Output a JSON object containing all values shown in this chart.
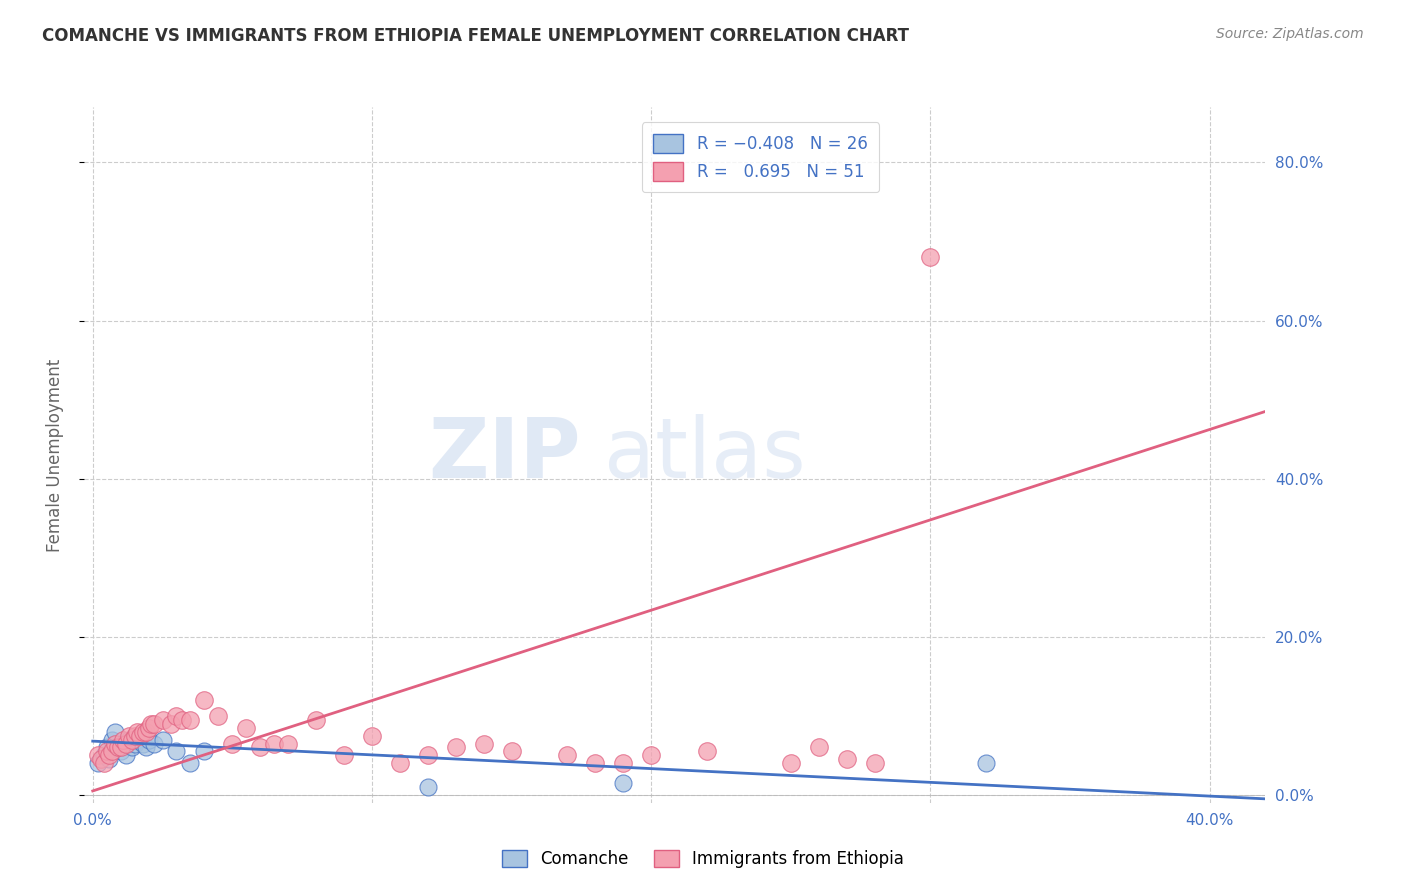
{
  "title": "COMANCHE VS IMMIGRANTS FROM ETHIOPIA FEMALE UNEMPLOYMENT CORRELATION CHART",
  "source": "Source: ZipAtlas.com",
  "ylabel": "Female Unemployment",
  "xlim": [
    -0.003,
    0.42
  ],
  "ylim": [
    -0.01,
    0.87
  ],
  "ytick_labels": [
    "0.0%",
    "20.0%",
    "40.0%",
    "60.0%",
    "80.0%"
  ],
  "ytick_vals": [
    0.0,
    0.2,
    0.4,
    0.6,
    0.8
  ],
  "xtick_labels": [
    "0.0%",
    "",
    "",
    "",
    "40.0%"
  ],
  "xtick_vals": [
    0.0,
    0.1,
    0.2,
    0.3,
    0.4
  ],
  "grid_color": "#cccccc",
  "background_color": "#ffffff",
  "comanche_color": "#a8c4e0",
  "ethiopia_color": "#f4a0b0",
  "line1_color": "#4472c4",
  "line2_color": "#e06080",
  "tick_label_color": "#4472c4",
  "title_color": "#333333",
  "source_color": "#888888",
  "ylabel_color": "#666666",
  "comanche_points_x": [
    0.002,
    0.004,
    0.005,
    0.006,
    0.007,
    0.008,
    0.009,
    0.01,
    0.011,
    0.012,
    0.013,
    0.014,
    0.015,
    0.016,
    0.017,
    0.018,
    0.019,
    0.02,
    0.022,
    0.025,
    0.03,
    0.035,
    0.04,
    0.12,
    0.19,
    0.32
  ],
  "comanche_points_y": [
    0.04,
    0.05,
    0.06,
    0.045,
    0.07,
    0.08,
    0.06,
    0.055,
    0.065,
    0.05,
    0.07,
    0.06,
    0.065,
    0.07,
    0.075,
    0.065,
    0.06,
    0.07,
    0.065,
    0.07,
    0.055,
    0.04,
    0.055,
    0.01,
    0.015,
    0.04
  ],
  "ethiopia_points_x": [
    0.002,
    0.003,
    0.004,
    0.005,
    0.006,
    0.007,
    0.008,
    0.009,
    0.01,
    0.011,
    0.012,
    0.013,
    0.014,
    0.015,
    0.016,
    0.017,
    0.018,
    0.019,
    0.02,
    0.021,
    0.022,
    0.025,
    0.028,
    0.03,
    0.032,
    0.035,
    0.04,
    0.045,
    0.05,
    0.055,
    0.06,
    0.065,
    0.07,
    0.08,
    0.09,
    0.1,
    0.11,
    0.12,
    0.13,
    0.14,
    0.15,
    0.17,
    0.18,
    0.19,
    0.2,
    0.22,
    0.25,
    0.28,
    0.3,
    0.27,
    0.26
  ],
  "ethiopia_points_y": [
    0.05,
    0.045,
    0.04,
    0.055,
    0.05,
    0.055,
    0.065,
    0.06,
    0.06,
    0.07,
    0.065,
    0.075,
    0.07,
    0.075,
    0.08,
    0.075,
    0.08,
    0.08,
    0.085,
    0.09,
    0.09,
    0.095,
    0.09,
    0.1,
    0.095,
    0.095,
    0.12,
    0.1,
    0.065,
    0.085,
    0.06,
    0.065,
    0.065,
    0.095,
    0.05,
    0.075,
    0.04,
    0.05,
    0.06,
    0.065,
    0.055,
    0.05,
    0.04,
    0.04,
    0.05,
    0.055,
    0.04,
    0.04,
    0.68,
    0.045,
    0.06
  ],
  "line1_x": [
    0.0,
    0.42
  ],
  "line1_y": [
    0.068,
    -0.005
  ],
  "line2_x": [
    0.0,
    0.42
  ],
  "line2_y": [
    0.005,
    0.485
  ]
}
